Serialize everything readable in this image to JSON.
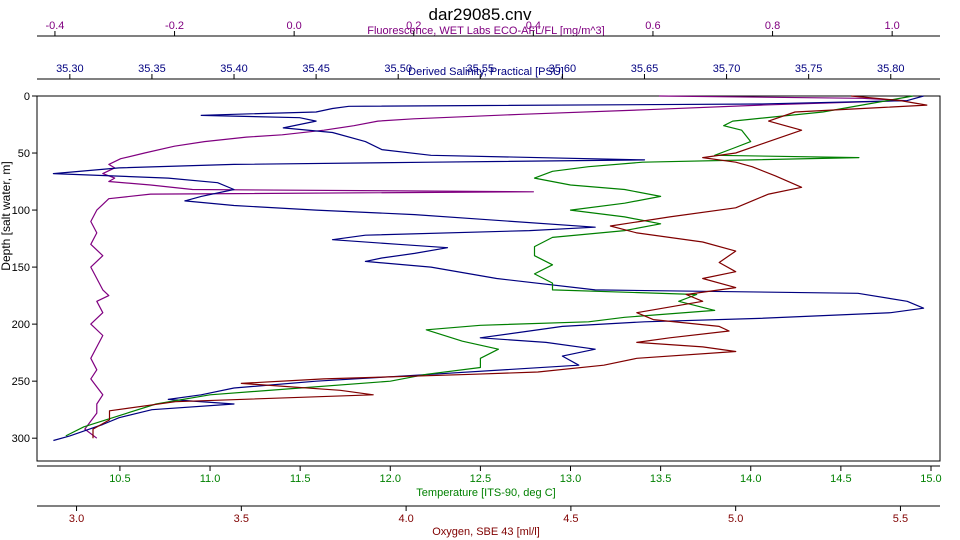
{
  "chart_data": {
    "type": "line",
    "title": "dar29085.cnv",
    "grid": false,
    "y_axis": {
      "label": "Depth [salt water, m]",
      "range": [
        320,
        0
      ],
      "ticks": [
        0,
        50,
        100,
        150,
        200,
        250,
        300
      ],
      "color": "#000000"
    },
    "x_axes": [
      {
        "id": "fluor",
        "position": "top",
        "label": "Fluorescence, WET Labs ECO-AFL/FL [mg/m^3]",
        "color": "#800080",
        "range": [
          -0.43,
          1.08
        ],
        "ticks": [
          -0.4,
          -0.2,
          0.0,
          0.2,
          0.4,
          0.6,
          0.8,
          1.0
        ],
        "tick_labels": [
          "-0.4",
          "-0.2",
          "0.0",
          "0.2",
          "0.4",
          "0.6",
          "0.8",
          "1.0"
        ]
      },
      {
        "id": "sal",
        "position": "top",
        "label": "Derived Salinity, Practical [PSU]",
        "color": "#000080",
        "range": [
          35.28,
          35.83
        ],
        "ticks": [
          35.3,
          35.35,
          35.4,
          35.45,
          35.5,
          35.55,
          35.6,
          35.65,
          35.7,
          35.75,
          35.8
        ],
        "tick_labels": [
          "35.30",
          "35.35",
          "35.40",
          "35.45",
          "35.50",
          "35.55",
          "35.60",
          "35.65",
          "35.70",
          "35.75",
          "35.80"
        ]
      },
      {
        "id": "temp",
        "position": "bottom",
        "label": "Temperature [ITS-90, deg C]",
        "color": "#008000",
        "range": [
          10.04,
          15.05
        ],
        "ticks": [
          10.5,
          11.0,
          11.5,
          12.0,
          12.5,
          13.0,
          13.5,
          14.0,
          14.5,
          15.0
        ],
        "tick_labels": [
          "10.5",
          "11.0",
          "11.5",
          "12.0",
          "12.5",
          "13.0",
          "13.5",
          "14.0",
          "14.5",
          "15.0"
        ]
      },
      {
        "id": "oxy",
        "position": "bottom",
        "label": "Oxygen, SBE 43 [ml/l]",
        "color": "#800000",
        "range": [
          2.88,
          5.62
        ],
        "ticks": [
          3.0,
          3.5,
          4.0,
          4.5,
          5.0,
          5.5
        ],
        "tick_labels": [
          "3.0",
          "3.5",
          "4.0",
          "4.5",
          "5.0",
          "5.5"
        ]
      }
    ],
    "series": [
      {
        "axis": "fluor",
        "color": "#800080",
        "points": [
          [
            0.61,
            0
          ],
          [
            0.95,
            2
          ],
          [
            1.02,
            4
          ],
          [
            0.78,
            8
          ],
          [
            0.59,
            12
          ],
          [
            0.38,
            16
          ],
          [
            0.2,
            20
          ],
          [
            0.14,
            22
          ],
          [
            0.1,
            26
          ],
          [
            0.05,
            30
          ],
          [
            -0.02,
            34
          ],
          [
            -0.08,
            36
          ],
          [
            -0.15,
            40
          ],
          [
            -0.2,
            44
          ],
          [
            -0.25,
            50
          ],
          [
            -0.29,
            55
          ],
          [
            -0.31,
            60
          ],
          [
            -0.3,
            63
          ],
          [
            -0.32,
            68
          ],
          [
            -0.3,
            72
          ],
          [
            -0.31,
            75
          ],
          [
            -0.24,
            78
          ],
          [
            -0.17,
            82
          ],
          [
            0.4,
            84
          ],
          [
            -0.24,
            86
          ],
          [
            -0.31,
            90
          ],
          [
            -0.32,
            95
          ],
          [
            -0.33,
            100
          ],
          [
            -0.34,
            110
          ],
          [
            -0.33,
            120
          ],
          [
            -0.34,
            130
          ],
          [
            -0.32,
            140
          ],
          [
            -0.34,
            150
          ],
          [
            -0.33,
            160
          ],
          [
            -0.32,
            170
          ],
          [
            -0.31,
            175
          ],
          [
            -0.33,
            180
          ],
          [
            -0.32,
            190
          ],
          [
            -0.34,
            200
          ],
          [
            -0.32,
            210
          ],
          [
            -0.33,
            220
          ],
          [
            -0.34,
            230
          ],
          [
            -0.33,
            240
          ],
          [
            -0.34,
            248
          ],
          [
            -0.33,
            255
          ],
          [
            -0.32,
            262
          ],
          [
            -0.33,
            270
          ],
          [
            -0.33,
            278
          ],
          [
            -0.34,
            285
          ],
          [
            -0.35,
            292
          ],
          [
            -0.33,
            300
          ]
        ]
      },
      {
        "axis": "sal",
        "color": "#000080",
        "points": [
          [
            35.82,
            0
          ],
          [
            35.81,
            4
          ],
          [
            35.72,
            7
          ],
          [
            35.47,
            9
          ],
          [
            35.46,
            11
          ],
          [
            35.45,
            14
          ],
          [
            35.4,
            16
          ],
          [
            35.38,
            17
          ],
          [
            35.44,
            19
          ],
          [
            35.45,
            22
          ],
          [
            35.43,
            28
          ],
          [
            35.46,
            32
          ],
          [
            35.48,
            40
          ],
          [
            35.49,
            47
          ],
          [
            35.52,
            52
          ],
          [
            35.65,
            56
          ],
          [
            35.52,
            58
          ],
          [
            35.4,
            60
          ],
          [
            35.33,
            63
          ],
          [
            35.29,
            68
          ],
          [
            35.36,
            72
          ],
          [
            35.39,
            76
          ],
          [
            35.4,
            82
          ],
          [
            35.38,
            88
          ],
          [
            35.37,
            92
          ],
          [
            35.4,
            96
          ],
          [
            35.45,
            100
          ],
          [
            35.51,
            104
          ],
          [
            35.55,
            108
          ],
          [
            35.62,
            115
          ],
          [
            35.58,
            118
          ],
          [
            35.48,
            122
          ],
          [
            35.46,
            126
          ],
          [
            35.5,
            130
          ],
          [
            35.53,
            133
          ],
          [
            35.51,
            138
          ],
          [
            35.49,
            142
          ],
          [
            35.48,
            145
          ],
          [
            35.52,
            150
          ],
          [
            35.56,
            160
          ],
          [
            35.62,
            170
          ],
          [
            35.78,
            173
          ],
          [
            35.81,
            180
          ],
          [
            35.82,
            186
          ],
          [
            35.8,
            190
          ],
          [
            35.72,
            195
          ],
          [
            35.65,
            198
          ],
          [
            35.6,
            202
          ],
          [
            35.58,
            206
          ],
          [
            35.55,
            212
          ],
          [
            35.59,
            216
          ],
          [
            35.62,
            222
          ],
          [
            35.6,
            228
          ],
          [
            35.61,
            236
          ],
          [
            35.52,
            244
          ],
          [
            35.45,
            250
          ],
          [
            35.4,
            256
          ],
          [
            35.38,
            262
          ],
          [
            35.36,
            266
          ],
          [
            35.4,
            270
          ],
          [
            35.35,
            275
          ],
          [
            35.33,
            282
          ],
          [
            35.32,
            288
          ],
          [
            35.31,
            293
          ],
          [
            35.3,
            298
          ],
          [
            35.29,
            302
          ]
        ]
      },
      {
        "axis": "temp",
        "color": "#008000",
        "points": [
          [
            14.9,
            0
          ],
          [
            14.4,
            14
          ],
          [
            13.9,
            22
          ],
          [
            13.85,
            26
          ],
          [
            13.95,
            30
          ],
          [
            14.0,
            40
          ],
          [
            13.9,
            46
          ],
          [
            13.8,
            52
          ],
          [
            14.6,
            54
          ],
          [
            13.4,
            58
          ],
          [
            13.1,
            62
          ],
          [
            12.9,
            66
          ],
          [
            12.8,
            72
          ],
          [
            13.0,
            78
          ],
          [
            13.3,
            82
          ],
          [
            13.5,
            88
          ],
          [
            13.3,
            94
          ],
          [
            13.0,
            100
          ],
          [
            13.3,
            106
          ],
          [
            13.5,
            112
          ],
          [
            13.3,
            118
          ],
          [
            12.9,
            124
          ],
          [
            12.8,
            132
          ],
          [
            12.8,
            140
          ],
          [
            12.9,
            148
          ],
          [
            12.8,
            156
          ],
          [
            12.9,
            164
          ],
          [
            12.9,
            170
          ],
          [
            13.7,
            174
          ],
          [
            13.6,
            180
          ],
          [
            13.8,
            188
          ],
          [
            13.3,
            194
          ],
          [
            13.1,
            198
          ],
          [
            12.5,
            201
          ],
          [
            12.2,
            205
          ],
          [
            12.4,
            215
          ],
          [
            12.6,
            222
          ],
          [
            12.5,
            230
          ],
          [
            12.5,
            238
          ],
          [
            12.2,
            244
          ],
          [
            12.0,
            250
          ],
          [
            11.5,
            256
          ],
          [
            11.0,
            262
          ],
          [
            10.7,
            270
          ],
          [
            10.5,
            280
          ],
          [
            10.3,
            290
          ],
          [
            10.2,
            298
          ]
        ]
      },
      {
        "axis": "oxy",
        "color": "#800000",
        "points": [
          [
            5.35,
            0
          ],
          [
            5.5,
            4
          ],
          [
            5.58,
            8
          ],
          [
            5.45,
            10
          ],
          [
            5.18,
            14
          ],
          [
            5.1,
            22
          ],
          [
            5.2,
            30
          ],
          [
            5.1,
            40
          ],
          [
            5.0,
            50
          ],
          [
            4.9,
            54
          ],
          [
            5.0,
            58
          ],
          [
            5.05,
            62
          ],
          [
            5.12,
            70
          ],
          [
            5.2,
            80
          ],
          [
            5.1,
            86
          ],
          [
            5.05,
            92
          ],
          [
            5.0,
            98
          ],
          [
            4.8,
            106
          ],
          [
            4.62,
            114
          ],
          [
            4.7,
            120
          ],
          [
            4.9,
            128
          ],
          [
            5.0,
            136
          ],
          [
            4.95,
            146
          ],
          [
            5.0,
            154
          ],
          [
            4.9,
            160
          ],
          [
            5.0,
            168
          ],
          [
            4.85,
            174
          ],
          [
            4.9,
            180
          ],
          [
            4.7,
            190
          ],
          [
            4.75,
            196
          ],
          [
            4.95,
            202
          ],
          [
            4.98,
            206
          ],
          [
            4.8,
            212
          ],
          [
            4.7,
            216
          ],
          [
            4.9,
            220
          ],
          [
            5.0,
            224
          ],
          [
            4.7,
            230
          ],
          [
            4.6,
            236
          ],
          [
            4.4,
            242
          ],
          [
            4.2,
            244
          ],
          [
            3.75,
            248
          ],
          [
            3.5,
            252
          ],
          [
            3.8,
            258
          ],
          [
            3.9,
            262
          ],
          [
            3.3,
            268
          ],
          [
            3.1,
            276
          ],
          [
            3.1,
            284
          ],
          [
            3.05,
            292
          ],
          [
            3.05,
            300
          ]
        ]
      }
    ]
  }
}
